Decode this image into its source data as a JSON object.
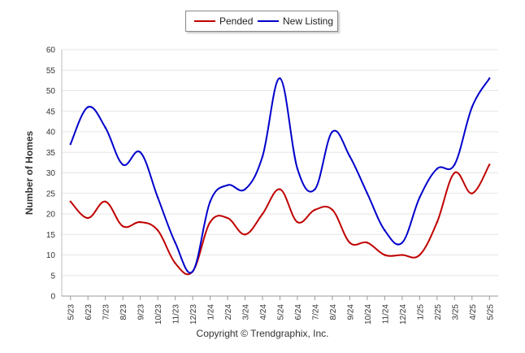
{
  "chart_data": {
    "type": "line",
    "title": "",
    "xlabel": "",
    "ylabel": "Number of Homes",
    "ylim": [
      0,
      60
    ],
    "yticks": [
      0,
      5,
      10,
      15,
      20,
      25,
      30,
      35,
      40,
      45,
      50,
      55,
      60
    ],
    "grid": true,
    "legend_position": "top-center",
    "categories": [
      "5/23",
      "6/23",
      "7/23",
      "8/23",
      "9/23",
      "10/23",
      "11/23",
      "12/23",
      "1/24",
      "2/24",
      "3/24",
      "4/24",
      "5/24",
      "6/24",
      "7/24",
      "8/24",
      "9/24",
      "10/24",
      "11/24",
      "12/24",
      "1/25",
      "2/25",
      "3/25",
      "4/25",
      "5/25"
    ],
    "series": [
      {
        "name": "Pended",
        "color": "#c00000",
        "values": [
          23,
          19,
          23,
          17,
          18,
          16,
          8,
          6,
          18,
          19,
          15,
          20,
          26,
          18,
          21,
          21,
          13,
          13,
          10,
          10,
          10,
          18,
          30,
          25,
          32
        ]
      },
      {
        "name": "New Listing",
        "color": "#0000cc",
        "values": [
          37,
          46,
          41,
          32,
          35,
          24,
          13,
          6,
          23,
          27,
          26,
          34,
          53,
          31,
          26,
          40,
          34,
          25,
          16,
          13,
          24,
          31,
          32,
          46,
          53
        ]
      }
    ]
  },
  "legend": {
    "items": [
      {
        "label": "Pended",
        "color": "#c00000"
      },
      {
        "label": "New Listing",
        "color": "#0000cc"
      }
    ]
  },
  "footer": {
    "copyright": "Copyright © Trendgraphix, Inc."
  }
}
